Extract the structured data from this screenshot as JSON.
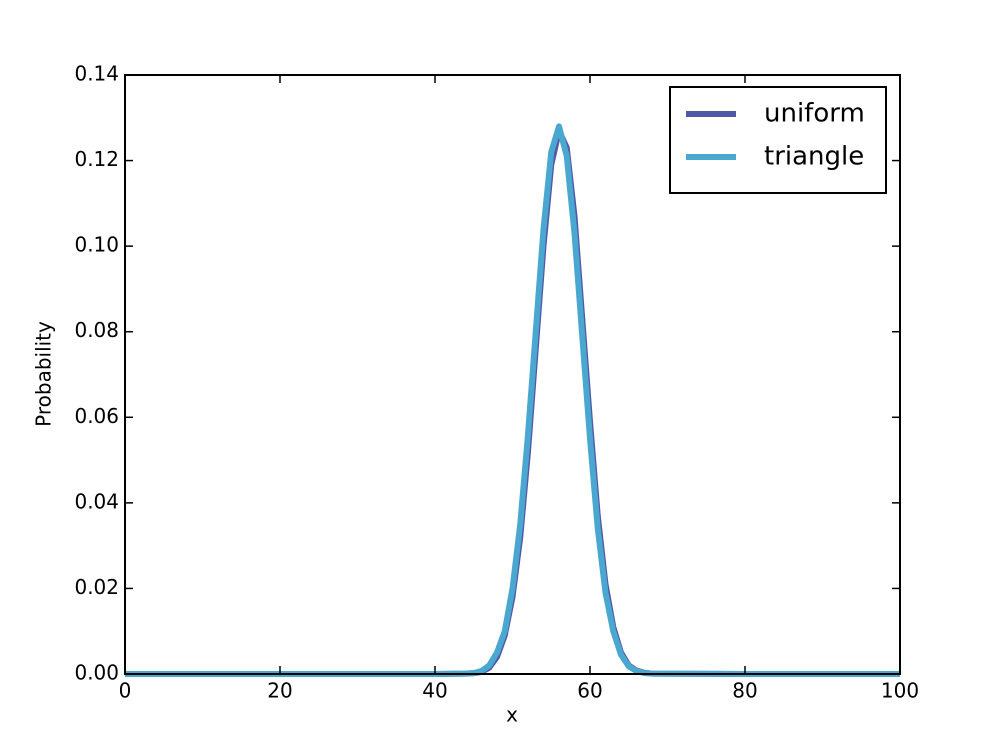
{
  "chart_data": {
    "type": "line",
    "xlabel": "x",
    "ylabel": "Probability",
    "x": [
      0,
      20,
      40,
      44,
      45,
      46,
      47,
      48,
      49,
      50,
      51,
      52,
      53,
      54,
      55,
      56,
      57,
      58,
      59,
      60,
      61,
      62,
      63,
      64,
      65,
      66,
      67,
      68,
      80,
      100
    ],
    "series": [
      {
        "name": "uniform",
        "color": "#5058a8",
        "values": [
          0,
          0,
          0,
          0.0001,
          0.0002,
          0.0005,
          0.0015,
          0.004,
          0.009,
          0.018,
          0.032,
          0.052,
          0.076,
          0.1,
          0.119,
          0.127,
          0.123,
          0.107,
          0.083,
          0.059,
          0.037,
          0.021,
          0.011,
          0.005,
          0.002,
          0.0008,
          0.0003,
          0.0001,
          0,
          0
        ]
      },
      {
        "name": "triangle",
        "color": "#4aa8d0",
        "values": [
          0,
          0,
          0,
          0.0001,
          0.0002,
          0.0007,
          0.002,
          0.005,
          0.01,
          0.02,
          0.035,
          0.056,
          0.08,
          0.104,
          0.122,
          0.128,
          0.121,
          0.103,
          0.079,
          0.055,
          0.034,
          0.019,
          0.01,
          0.0045,
          0.0018,
          0.0007,
          0.0002,
          0.0001,
          0,
          0
        ]
      }
    ],
    "xlim": [
      0,
      100
    ],
    "xticks": [
      0,
      20,
      40,
      60,
      80,
      100
    ],
    "ylim": [
      0,
      0.14
    ],
    "yticks": [
      {
        "value": 0,
        "label": "0.00"
      },
      {
        "value": 0.02,
        "label": "0.02"
      },
      {
        "value": 0.04,
        "label": "0.04"
      },
      {
        "value": 0.06,
        "label": "0.06"
      },
      {
        "value": 0.08,
        "label": "0.08"
      },
      {
        "value": 0.1,
        "label": "0.10"
      },
      {
        "value": 0.12,
        "label": "0.12"
      },
      {
        "value": 0.14,
        "label": "0.14"
      }
    ],
    "legend": "upper right",
    "grid": false
  }
}
